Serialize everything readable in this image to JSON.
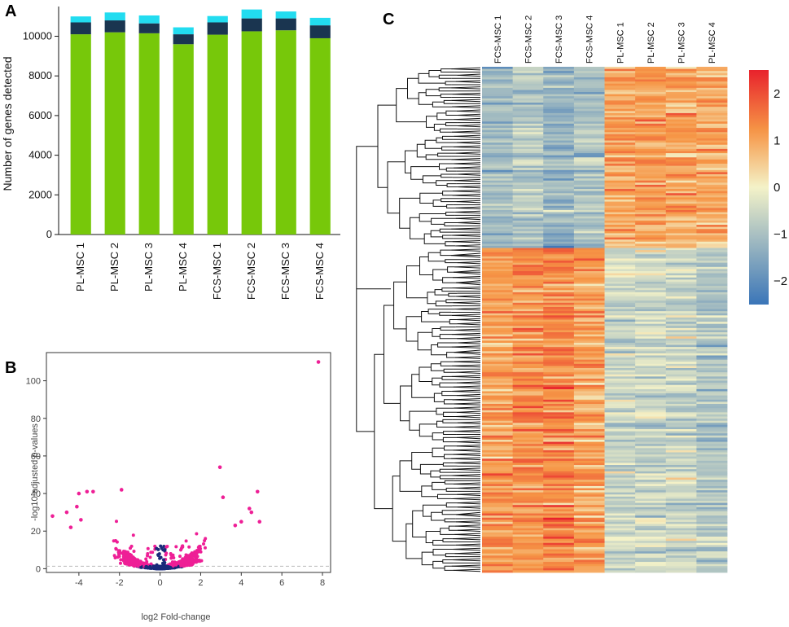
{
  "panels": {
    "a": "A",
    "b": "B",
    "c": "C"
  },
  "chart_data": [
    {
      "type": "bar",
      "panel": "A",
      "title": "",
      "xlabel": "",
      "ylabel": "Number of genes detected",
      "categories": [
        "PL-MSC 1",
        "PL-MSC 2",
        "PL-MSC 3",
        "PL-MSC 4",
        "FCS-MSC 1",
        "FCS-MSC 2",
        "FCS-MSC 3",
        "FCS-MSC 4"
      ],
      "stacked": true,
      "series": [
        {
          "name": "green",
          "color": "#77c80a",
          "values": [
            10100,
            10200,
            10150,
            9600,
            10080,
            10250,
            10300,
            9900
          ]
        },
        {
          "name": "navy",
          "color": "#1a3550",
          "values": [
            600,
            600,
            500,
            500,
            620,
            650,
            600,
            650
          ]
        },
        {
          "name": "cyan",
          "color": "#22dcf0",
          "values": [
            300,
            400,
            400,
            350,
            320,
            450,
            350,
            380
          ]
        }
      ],
      "ylim": [
        0,
        11500
      ],
      "yticks": [
        0,
        2000,
        4000,
        6000,
        8000,
        10000
      ]
    },
    {
      "type": "scatter",
      "panel": "B",
      "title": "",
      "xlabel": "log2 Fold-change",
      "ylabel": "-log10 adjusted p-values",
      "xlim": [
        -5.6,
        8.4
      ],
      "ylim": [
        -2,
        115
      ],
      "xticks": [
        -4,
        -2,
        0,
        2,
        4,
        6,
        8
      ],
      "yticks": [
        0,
        20,
        40,
        60,
        80,
        100
      ],
      "threshold_y": 1.3,
      "point_color": "#ee1f96",
      "insignificant_color": "#1a2a7a",
      "highlight_points": [
        {
          "x": 7.8,
          "y": 110
        },
        {
          "x": 2.95,
          "y": 54
        },
        {
          "x": -1.9,
          "y": 42
        },
        {
          "x": -3.6,
          "y": 41
        },
        {
          "x": -4.0,
          "y": 40
        },
        {
          "x": -3.3,
          "y": 41
        },
        {
          "x": 4.8,
          "y": 41
        },
        {
          "x": 3.1,
          "y": 38
        },
        {
          "x": 4.4,
          "y": 32
        },
        {
          "x": 4.5,
          "y": 30
        },
        {
          "x": -5.3,
          "y": 28
        },
        {
          "x": -4.1,
          "y": 33
        },
        {
          "x": -4.6,
          "y": 30
        },
        {
          "x": 4.0,
          "y": 25
        },
        {
          "x": -3.9,
          "y": 26
        },
        {
          "x": 4.9,
          "y": 25
        },
        {
          "x": -4.4,
          "y": 22
        },
        {
          "x": 3.7,
          "y": 23
        }
      ]
    },
    {
      "type": "heatmap",
      "panel": "C",
      "columns": [
        "FCS-MSC 1",
        "FCS-MSC 2",
        "FCS-MSC 3",
        "FCS-MSC 4",
        "PL-MSC 1",
        "PL-MSC 2",
        "PL-MSC 3",
        "PL-MSC 4"
      ],
      "legend_ticks": [
        2,
        1,
        0,
        -1,
        -2
      ],
      "legend_tick_labels": [
        "2",
        "1",
        "0",
        "−1",
        "−2"
      ],
      "value_range": [
        -2.5,
        2.5
      ],
      "colors": [
        "#3a75b8",
        "#f4f2c8",
        "#e8222c"
      ],
      "clusters": [
        {
          "name": "upper",
          "fraction": 0.36,
          "column_means": [
            -1.1,
            -0.9,
            -1.3,
            -1.0,
            1.0,
            1.1,
            1.0,
            0.9
          ]
        },
        {
          "name": "lower",
          "fraction": 0.64,
          "column_means": [
            1.1,
            1.2,
            1.3,
            1.0,
            -0.6,
            -0.5,
            -0.6,
            -0.9
          ]
        }
      ]
    }
  ]
}
